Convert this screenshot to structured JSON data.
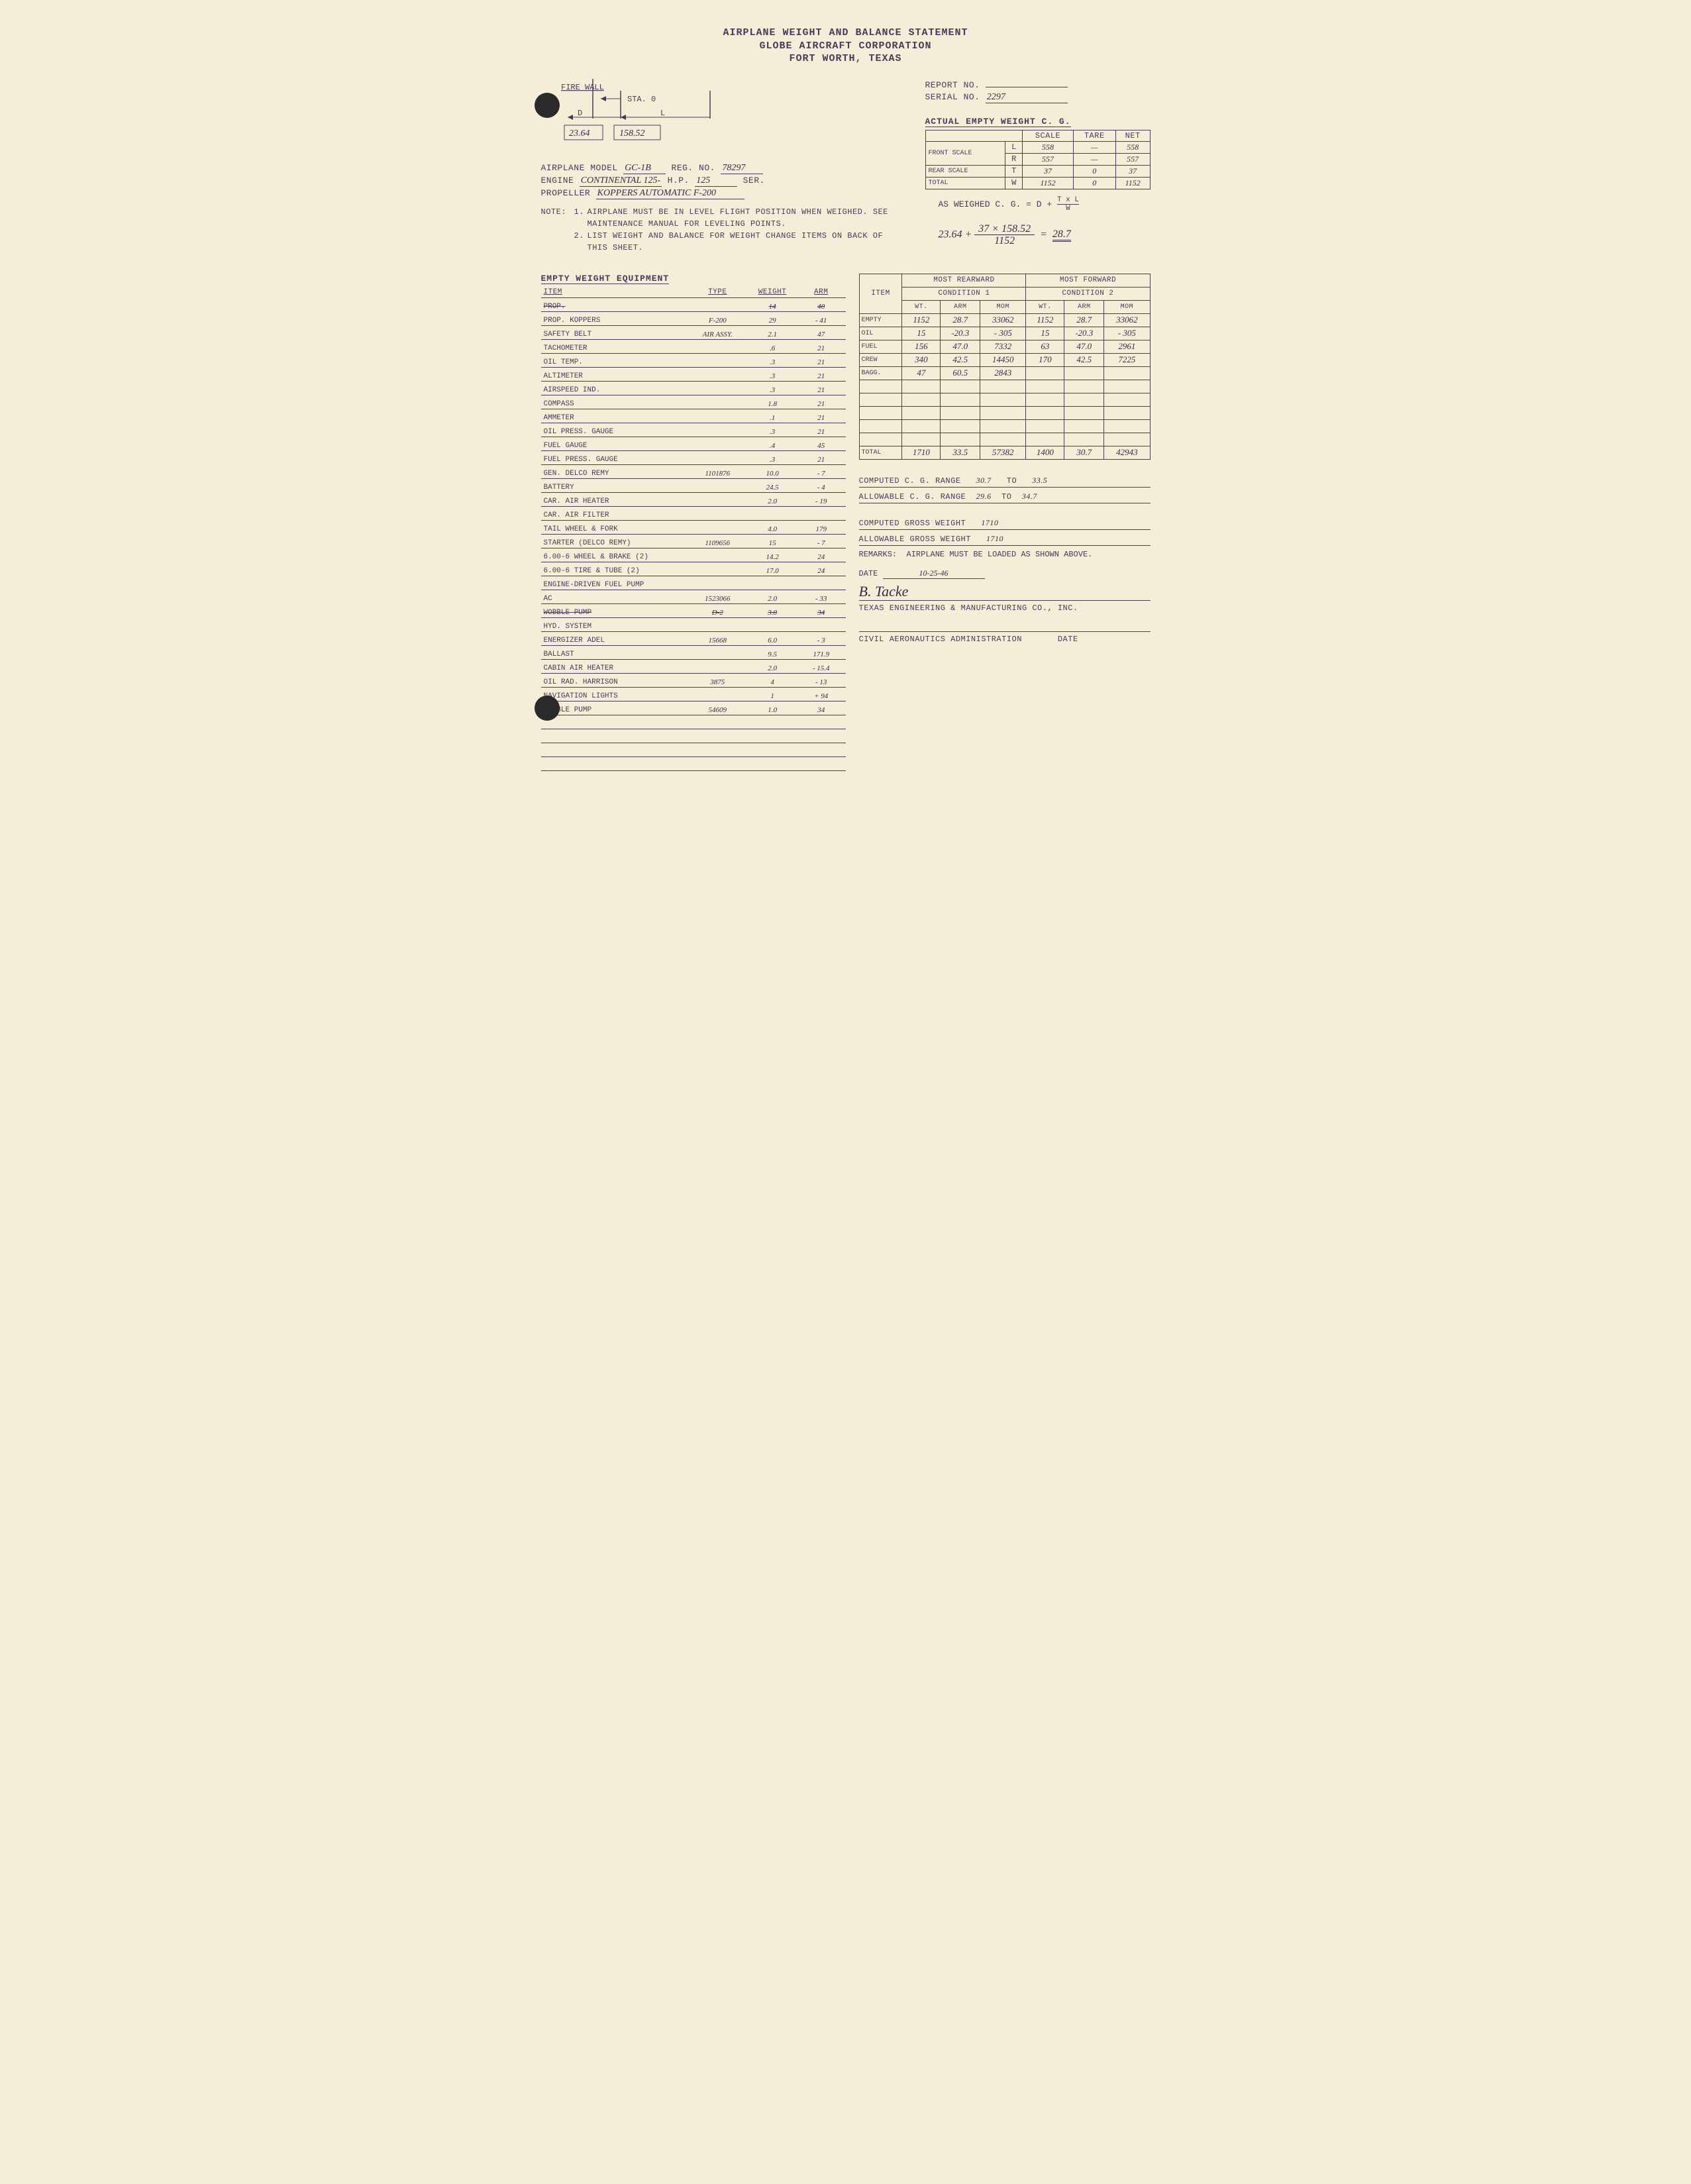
{
  "header": {
    "title": "AIRPLANE WEIGHT AND BALANCE STATEMENT",
    "company": "GLOBE AIRCRAFT CORPORATION",
    "location": "FORT WORTH, TEXAS"
  },
  "diagram": {
    "fire_wall_label": "FIRE WALL",
    "sta_label": "STA. 0",
    "d_label": "D",
    "l_label": "L",
    "d_value": "23.64",
    "l_value": "158.52"
  },
  "report": {
    "report_no_label": "REPORT NO.",
    "report_no": "",
    "serial_no_label": "SERIAL NO.",
    "serial_no": "2297"
  },
  "aircraft": {
    "model_label": "AIRPLANE MODEL",
    "model": "GC-1B",
    "reg_label": "REG. NO.",
    "reg": "78297",
    "engine_label": "ENGINE",
    "engine": "CONTINENTAL 125-",
    "hp_label": "H.P.",
    "hp": "125",
    "ser_label": "SER.",
    "prop_label": "PROPELLER",
    "prop": "KOPPERS AUTOMATIC F-200"
  },
  "notes": {
    "label": "NOTE:",
    "n1_num": "1.",
    "n1": "AIRPLANE MUST BE IN LEVEL FLIGHT POSITION WHEN WEIGHED. SEE MAINTENANCE MANUAL FOR LEVELING POINTS.",
    "n2_num": "2.",
    "n2": "LIST WEIGHT AND BALANCE FOR WEIGHT CHANGE ITEMS ON BACK OF THIS SHEET."
  },
  "actual_weight": {
    "title": "ACTUAL EMPTY WEIGHT C. G.",
    "cols": {
      "scale": "SCALE",
      "tare": "TARE",
      "net": "NET"
    },
    "rows": [
      {
        "label": "FRONT SCALE",
        "sub": "L",
        "scale": "558",
        "tare": "—",
        "net": "558"
      },
      {
        "label": "",
        "sub": "R",
        "scale": "557",
        "tare": "—",
        "net": "557"
      },
      {
        "label": "REAR SCALE",
        "sub": "T",
        "scale": "37",
        "tare": "0",
        "net": "37"
      },
      {
        "label": "TOTAL",
        "sub": "W",
        "scale": "1152",
        "tare": "0",
        "net": "1152"
      }
    ],
    "formula_label": "AS WEIGHED C. G. = D +",
    "formula_frac_top": "T x L",
    "formula_frac_bot": "W",
    "calc_d": "23.64",
    "calc_plus": "+",
    "calc_top": "37 × 158.52",
    "calc_bot": "1152",
    "calc_eq": "=",
    "calc_result": "28.7"
  },
  "equipment": {
    "title": "EMPTY WEIGHT EQUIPMENT",
    "cols": {
      "item": "ITEM",
      "type": "TYPE",
      "weight": "WEIGHT",
      "arm": "ARM"
    },
    "rows": [
      {
        "item": "PROP.",
        "type": "",
        "wt": "14",
        "arm": "40",
        "strike": true
      },
      {
        "item": "PROP. KOPPERS",
        "type": "F-200",
        "wt": "29",
        "arm": "- 41"
      },
      {
        "item": "SAFETY BELT",
        "type": "AIR ASSY.",
        "wt": "2.1",
        "arm": "47"
      },
      {
        "item": "TACHOMETER",
        "type": "",
        "wt": ".6",
        "arm": "21"
      },
      {
        "item": "OIL TEMP.",
        "type": "",
        "wt": ".3",
        "arm": "21"
      },
      {
        "item": "ALTIMETER",
        "type": "",
        "wt": ".3",
        "arm": "21"
      },
      {
        "item": "AIRSPEED IND.",
        "type": "",
        "wt": ".3",
        "arm": "21"
      },
      {
        "item": "COMPASS",
        "type": "",
        "wt": "1.8",
        "arm": "21"
      },
      {
        "item": "AMMETER",
        "type": "",
        "wt": ".1",
        "arm": "21"
      },
      {
        "item": "OIL PRESS. GAUGE",
        "type": "",
        "wt": ".3",
        "arm": "21"
      },
      {
        "item": "FUEL GAUGE",
        "type": "",
        "wt": ".4",
        "arm": "45"
      },
      {
        "item": "FUEL PRESS. GAUGE",
        "type": "",
        "wt": ".3",
        "arm": "21"
      },
      {
        "item": "GEN. DELCO REMY",
        "type": "1101876",
        "wt": "10.0",
        "arm": "- 7"
      },
      {
        "item": "BATTERY",
        "type": "",
        "wt": "24.5",
        "arm": "- 4"
      },
      {
        "item": "CAR. AIR HEATER",
        "type": "",
        "wt": "2.0",
        "arm": "- 19"
      },
      {
        "item": "CAR. AIR FILTER",
        "type": "",
        "wt": "",
        "arm": ""
      },
      {
        "item": "TAIL WHEEL & FORK",
        "type": "",
        "wt": "4.0",
        "arm": "179"
      },
      {
        "item": "STARTER (DELCO REMY)",
        "type": "1109656",
        "wt": "15",
        "arm": "- 7"
      },
      {
        "item": "6.00-6 WHEEL & BRAKE (2)",
        "type": "",
        "wt": "14.2",
        "arm": "24"
      },
      {
        "item": "6.00-6 TIRE & TUBE (2)",
        "type": "",
        "wt": "17.0",
        "arm": "24"
      },
      {
        "item": "ENGINE-DRIVEN FUEL PUMP",
        "type": "",
        "wt": "",
        "arm": ""
      },
      {
        "item": "AC",
        "type": "1523066",
        "wt": "2.0",
        "arm": "- 33"
      },
      {
        "item": "WOBBLE PUMP",
        "type": "D-2",
        "wt": "3.0",
        "arm": "34",
        "strike": true
      },
      {
        "item": "HYD. SYSTEM",
        "type": "",
        "wt": "",
        "arm": ""
      },
      {
        "item": "ENERGIZER ADEL",
        "type": "15668",
        "wt": "6.0",
        "arm": "- 3"
      },
      {
        "item": "BALLAST",
        "type": "",
        "wt": "9.5",
        "arm": "171.9"
      },
      {
        "item": "CABIN AIR HEATER",
        "type": "",
        "wt": "2.0",
        "arm": "- 15.4"
      },
      {
        "item": "OIL RAD. HARRISON",
        "type": "3875",
        "wt": "4",
        "arm": "- 13"
      },
      {
        "item": "NAVIGATION LIGHTS",
        "type": "",
        "wt": "1",
        "arm": "+ 94"
      },
      {
        "item": "WOBBLE PUMP",
        "type": "54609",
        "wt": "1.0",
        "arm": "34"
      },
      {
        "item": "",
        "type": "",
        "wt": "",
        "arm": ""
      },
      {
        "item": "",
        "type": "",
        "wt": "",
        "arm": ""
      },
      {
        "item": "",
        "type": "",
        "wt": "",
        "arm": ""
      },
      {
        "item": "",
        "type": "",
        "wt": "",
        "arm": ""
      }
    ]
  },
  "conditions": {
    "head_rear": "MOST REARWARD",
    "head_rear_sub": "CONDITION 1",
    "head_fwd": "MOST FORWARD",
    "head_fwd_sub": "CONDITION 2",
    "cols": {
      "item": "ITEM",
      "wt": "WT.",
      "arm": "ARM",
      "mom": "MOM"
    },
    "rows": [
      {
        "item": "EMPTY",
        "r_wt": "1152",
        "r_arm": "28.7",
        "r_mom": "33062",
        "f_wt": "1152",
        "f_arm": "28.7",
        "f_mom": "33062"
      },
      {
        "item": "OIL",
        "r_wt": "15",
        "r_arm": "-20.3",
        "r_mom": "- 305",
        "f_wt": "15",
        "f_arm": "-20.3",
        "f_mom": "- 305"
      },
      {
        "item": "FUEL",
        "r_wt": "156",
        "r_arm": "47.0",
        "r_mom": "7332",
        "f_wt": "63",
        "f_arm": "47.0",
        "f_mom": "2961"
      },
      {
        "item": "CREW",
        "r_wt": "340",
        "r_arm": "42.5",
        "r_mom": "14450",
        "f_wt": "170",
        "f_arm": "42.5",
        "f_mom": "7225"
      },
      {
        "item": "BAGG.",
        "r_wt": "47",
        "r_arm": "60.5",
        "r_mom": "2843",
        "f_wt": "",
        "f_arm": "",
        "f_mom": ""
      },
      {
        "item": "",
        "r_wt": "",
        "r_arm": "",
        "r_mom": "",
        "f_wt": "",
        "f_arm": "",
        "f_mom": ""
      },
      {
        "item": "",
        "r_wt": "",
        "r_arm": "",
        "r_mom": "",
        "f_wt": "",
        "f_arm": "",
        "f_mom": ""
      },
      {
        "item": "",
        "r_wt": "",
        "r_arm": "",
        "r_mom": "",
        "f_wt": "",
        "f_arm": "",
        "f_mom": ""
      },
      {
        "item": "",
        "r_wt": "",
        "r_arm": "",
        "r_mom": "",
        "f_wt": "",
        "f_arm": "",
        "f_mom": ""
      },
      {
        "item": "",
        "r_wt": "",
        "r_arm": "",
        "r_mom": "",
        "f_wt": "",
        "f_arm": "",
        "f_mom": ""
      }
    ],
    "total": {
      "item": "TOTAL",
      "r_wt": "1710",
      "r_arm": "33.5",
      "r_mom": "57382",
      "f_wt": "1400",
      "f_arm": "30.7",
      "f_mom": "42943"
    }
  },
  "results": {
    "cg_range_label": "COMPUTED C. G. RANGE",
    "cg_range_from": "30.7",
    "cg_range_to_label": "TO",
    "cg_range_to": "33.5",
    "allow_cg_label": "ALLOWABLE C. G. RANGE",
    "allow_cg_from": "29.6",
    "allow_cg_to_label": "TO",
    "allow_cg_to": "34.7",
    "gross_label": "COMPUTED GROSS WEIGHT",
    "gross": "1710",
    "allow_gross_label": "ALLOWABLE GROSS WEIGHT",
    "allow_gross": "1710",
    "remarks_label": "REMARKS:",
    "remarks": "AIRPLANE MUST BE LOADED AS SHOWN ABOVE.",
    "date_label": "DATE",
    "date": "10-25-46",
    "signature": "B. Tacke",
    "signer": "TEXAS ENGINEERING & MANUFACTURING CO., INC.",
    "caa_label": "CIVIL AERONAUTICS ADMINISTRATION",
    "caa_date_label": "DATE"
  }
}
